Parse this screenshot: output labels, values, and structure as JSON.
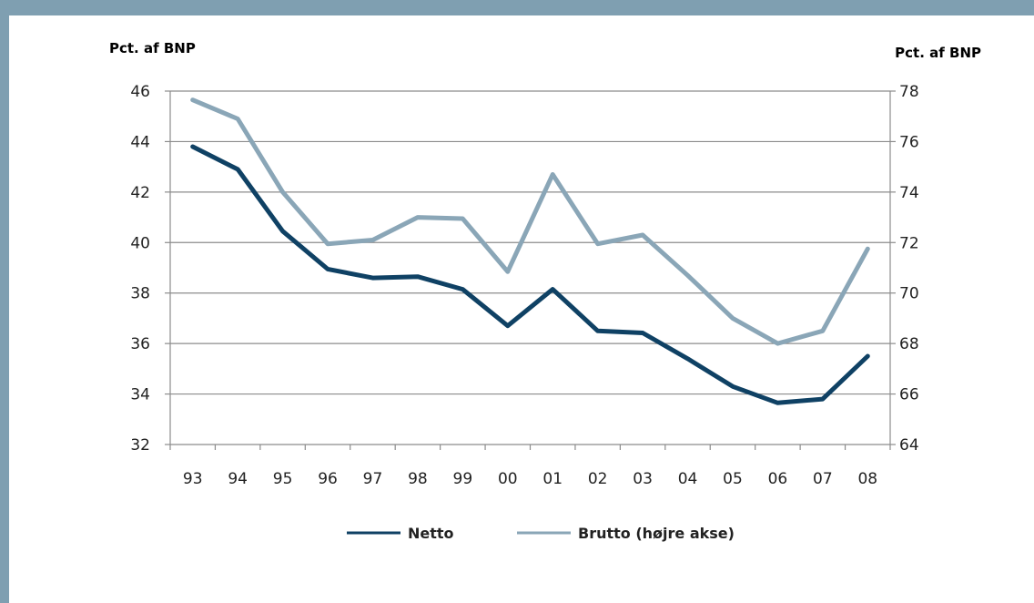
{
  "chart_data": {
    "type": "line",
    "categories": [
      "93",
      "94",
      "95",
      "96",
      "97",
      "98",
      "99",
      "00",
      "01",
      "02",
      "03",
      "04",
      "05",
      "06",
      "07",
      "08"
    ],
    "series": [
      {
        "name": "Netto",
        "axis": "left",
        "color": "#0f4164",
        "values": [
          43.8,
          42.9,
          40.45,
          38.95,
          38.6,
          38.65,
          38.15,
          36.7,
          38.15,
          36.5,
          36.42,
          35.4,
          34.3,
          33.65,
          33.8,
          35.5
        ]
      },
      {
        "name": "Brutto (højre akse)",
        "axis": "right",
        "color": "#8aa6b7",
        "values": [
          77.65,
          76.9,
          74.0,
          71.95,
          72.1,
          73.0,
          72.95,
          70.85,
          74.7,
          71.95,
          72.3,
          70.7,
          69.0,
          68.0,
          68.5,
          71.75
        ]
      }
    ],
    "left_axis": {
      "label": "Pct. af BNP",
      "ylim": [
        32,
        46
      ],
      "ticks": [
        32,
        34,
        36,
        38,
        40,
        42,
        44,
        46
      ]
    },
    "right_axis": {
      "label": "Pct. af BNP",
      "ylim": [
        64,
        78
      ],
      "ticks": [
        64,
        66,
        68,
        70,
        72,
        74,
        76,
        78
      ]
    },
    "grid": true,
    "legend_position": "bottom-center"
  },
  "colors": {
    "frame": "#7f9fb1",
    "grid": "#8c8c8c"
  }
}
